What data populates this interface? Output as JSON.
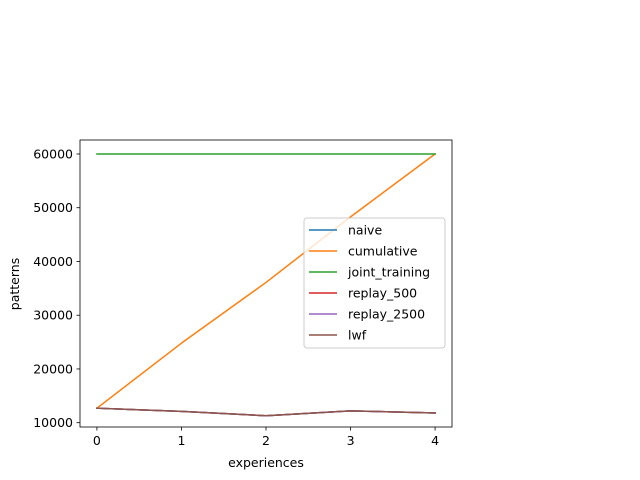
{
  "chart_data": {
    "type": "line",
    "xlabel": "experiences",
    "ylabel": "patterns",
    "x": [
      0,
      1,
      2,
      3,
      4
    ],
    "xlim": [
      -0.2,
      4.2
    ],
    "ylim": [
      9200,
      62600
    ],
    "xticks": [
      0,
      1,
      2,
      3,
      4
    ],
    "yticks": [
      10000,
      20000,
      30000,
      40000,
      50000,
      60000
    ],
    "grid": false,
    "legend_position": "center-right",
    "series": [
      {
        "name": "naive",
        "color": "#1f77b4",
        "values": [
          12700,
          12100,
          11300,
          12200,
          11800
        ]
      },
      {
        "name": "cumulative",
        "color": "#ff7f0e",
        "values": [
          12700,
          24800,
          36100,
          48300,
          60000
        ]
      },
      {
        "name": "joint_training",
        "color": "#2ca02c",
        "values": [
          60000,
          60000,
          60000,
          60000,
          60000
        ]
      },
      {
        "name": "replay_500",
        "color": "#d62728",
        "values": [
          12700,
          12100,
          11300,
          12200,
          11800
        ]
      },
      {
        "name": "replay_2500",
        "color": "#9467bd",
        "values": [
          12700,
          12100,
          11300,
          12200,
          11800
        ]
      },
      {
        "name": "lwf",
        "color": "#8c564b",
        "values": [
          12700,
          12100,
          11300,
          12200,
          11800
        ]
      }
    ]
  }
}
